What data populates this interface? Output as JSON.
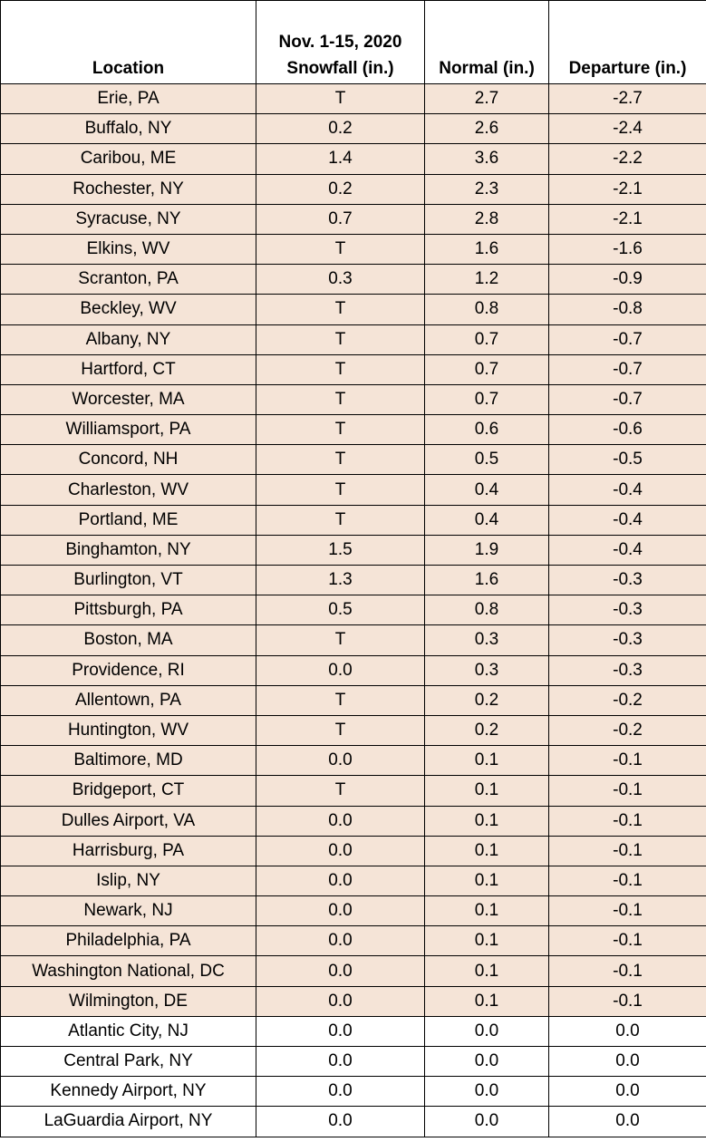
{
  "colors": {
    "highlight_row": "#f5e4d7",
    "plain_row": "#ffffff",
    "border": "#000000"
  },
  "table": {
    "headers": {
      "location": "Location",
      "snowfall_line1": "Nov. 1-15, 2020",
      "snowfall_line2": "Snowfall (in.)",
      "normal": "Normal (in.)",
      "departure": "Departure (in.)"
    },
    "rows": [
      {
        "location": "Erie, PA",
        "snowfall": "T",
        "normal": "2.7",
        "departure": "-2.7",
        "highlight": true
      },
      {
        "location": "Buffalo, NY",
        "snowfall": "0.2",
        "normal": "2.6",
        "departure": "-2.4",
        "highlight": true
      },
      {
        "location": "Caribou, ME",
        "snowfall": "1.4",
        "normal": "3.6",
        "departure": "-2.2",
        "highlight": true
      },
      {
        "location": "Rochester, NY",
        "snowfall": "0.2",
        "normal": "2.3",
        "departure": "-2.1",
        "highlight": true
      },
      {
        "location": "Syracuse, NY",
        "snowfall": "0.7",
        "normal": "2.8",
        "departure": "-2.1",
        "highlight": true
      },
      {
        "location": "Elkins, WV",
        "snowfall": "T",
        "normal": "1.6",
        "departure": "-1.6",
        "highlight": true
      },
      {
        "location": "Scranton, PA",
        "snowfall": "0.3",
        "normal": "1.2",
        "departure": "-0.9",
        "highlight": true
      },
      {
        "location": "Beckley, WV",
        "snowfall": "T",
        "normal": "0.8",
        "departure": "-0.8",
        "highlight": true
      },
      {
        "location": "Albany, NY",
        "snowfall": "T",
        "normal": "0.7",
        "departure": "-0.7",
        "highlight": true
      },
      {
        "location": "Hartford, CT",
        "snowfall": "T",
        "normal": "0.7",
        "departure": "-0.7",
        "highlight": true
      },
      {
        "location": "Worcester, MA",
        "snowfall": "T",
        "normal": "0.7",
        "departure": "-0.7",
        "highlight": true
      },
      {
        "location": "Williamsport, PA",
        "snowfall": "T",
        "normal": "0.6",
        "departure": "-0.6",
        "highlight": true
      },
      {
        "location": "Concord, NH",
        "snowfall": "T",
        "normal": "0.5",
        "departure": "-0.5",
        "highlight": true
      },
      {
        "location": "Charleston, WV",
        "snowfall": "T",
        "normal": "0.4",
        "departure": "-0.4",
        "highlight": true
      },
      {
        "location": "Portland, ME",
        "snowfall": "T",
        "normal": "0.4",
        "departure": "-0.4",
        "highlight": true
      },
      {
        "location": "Binghamton, NY",
        "snowfall": "1.5",
        "normal": "1.9",
        "departure": "-0.4",
        "highlight": true
      },
      {
        "location": "Burlington, VT",
        "snowfall": "1.3",
        "normal": "1.6",
        "departure": "-0.3",
        "highlight": true
      },
      {
        "location": "Pittsburgh, PA",
        "snowfall": "0.5",
        "normal": "0.8",
        "departure": "-0.3",
        "highlight": true
      },
      {
        "location": "Boston, MA",
        "snowfall": "T",
        "normal": "0.3",
        "departure": "-0.3",
        "highlight": true
      },
      {
        "location": "Providence, RI",
        "snowfall": "0.0",
        "normal": "0.3",
        "departure": "-0.3",
        "highlight": true
      },
      {
        "location": "Allentown, PA",
        "snowfall": "T",
        "normal": "0.2",
        "departure": "-0.2",
        "highlight": true
      },
      {
        "location": "Huntington, WV",
        "snowfall": "T",
        "normal": "0.2",
        "departure": "-0.2",
        "highlight": true
      },
      {
        "location": "Baltimore, MD",
        "snowfall": "0.0",
        "normal": "0.1",
        "departure": "-0.1",
        "highlight": true
      },
      {
        "location": "Bridgeport, CT",
        "snowfall": "T",
        "normal": "0.1",
        "departure": "-0.1",
        "highlight": true
      },
      {
        "location": "Dulles Airport, VA",
        "snowfall": "0.0",
        "normal": "0.1",
        "departure": "-0.1",
        "highlight": true
      },
      {
        "location": "Harrisburg, PA",
        "snowfall": "0.0",
        "normal": "0.1",
        "departure": "-0.1",
        "highlight": true
      },
      {
        "location": "Islip, NY",
        "snowfall": "0.0",
        "normal": "0.1",
        "departure": "-0.1",
        "highlight": true
      },
      {
        "location": "Newark, NJ",
        "snowfall": "0.0",
        "normal": "0.1",
        "departure": "-0.1",
        "highlight": true
      },
      {
        "location": "Philadelphia, PA",
        "snowfall": "0.0",
        "normal": "0.1",
        "departure": "-0.1",
        "highlight": true
      },
      {
        "location": "Washington National, DC",
        "snowfall": "0.0",
        "normal": "0.1",
        "departure": "-0.1",
        "highlight": true
      },
      {
        "location": "Wilmington, DE",
        "snowfall": "0.0",
        "normal": "0.1",
        "departure": "-0.1",
        "highlight": true
      },
      {
        "location": "Atlantic City, NJ",
        "snowfall": "0.0",
        "normal": "0.0",
        "departure": "0.0",
        "highlight": false
      },
      {
        "location": "Central Park, NY",
        "snowfall": "0.0",
        "normal": "0.0",
        "departure": "0.0",
        "highlight": false
      },
      {
        "location": "Kennedy Airport, NY",
        "snowfall": "0.0",
        "normal": "0.0",
        "departure": "0.0",
        "highlight": false
      },
      {
        "location": "LaGuardia Airport, NY",
        "snowfall": "0.0",
        "normal": "0.0",
        "departure": "0.0",
        "highlight": false
      }
    ]
  }
}
